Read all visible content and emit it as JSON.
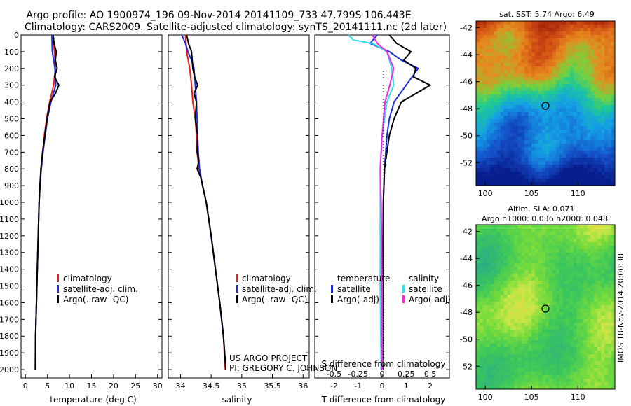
{
  "header": {
    "title_line1": "Argo profile: AO 1900974_196 09-Nov-2014 20141109_733 47.799S 106.443E",
    "title_line2": "Climatology: CARS2009. Satellite-adjusted climatology: synTS_20141111.nc (2d later)"
  },
  "colors": {
    "red": "#e8201a",
    "blue": "#1c2ed8",
    "black": "#000000",
    "cyan": "#2ee0ea",
    "magenta": "#ee28e6"
  },
  "depth_ticks": [
    "0",
    "100",
    "200",
    "300",
    "400",
    "500",
    "600",
    "700",
    "800",
    "900",
    "1000",
    "1100",
    "1200",
    "1300",
    "1400",
    "1500",
    "1600",
    "1700",
    "1800",
    "1900",
    "2000"
  ],
  "legend": {
    "clim": "climatology",
    "sat": "satellite-adj. clim.",
    "argo": "Argo(..raw -QC)",
    "temperature_head": "temperature",
    "salinity_head": "salinity",
    "satellite": "satellite",
    "argo_adj": "Argo(-adj)"
  },
  "credits": {
    "line1": "US ARGO PROJECT",
    "line2": "PI: GREGORY C. JOHNSON"
  },
  "maps": {
    "sst_title": "sat. SST: 5.74 Argo: 6.49",
    "sla_title1": "Altim. SLA: 0.071",
    "sla_title2": "Argo h1000: 0.036 h2000: 0.048",
    "yticks": [
      "-42",
      "-44",
      "-46",
      "-48",
      "-50",
      "-52"
    ],
    "xticks": [
      "100",
      "105",
      "110"
    ],
    "side_label": "IMOS 18-Nov-2014 20:00:38",
    "float_position": {
      "lon": 106.443,
      "lat": -47.799
    }
  },
  "chart_data": [
    {
      "type": "line",
      "xlabel": "temperature (deg C)",
      "ylabel": "",
      "xlim": [
        -1,
        31
      ],
      "ylim": [
        2050,
        0
      ],
      "xticks": [
        "0",
        "5",
        "10",
        "15",
        "20",
        "25",
        "30"
      ],
      "series": [
        {
          "name": "climatology",
          "color": "red",
          "points": [
            [
              6.2,
              0
            ],
            [
              6.6,
              100
            ],
            [
              6.8,
              200
            ],
            [
              6.4,
              300
            ],
            [
              5.5,
              400
            ],
            [
              4.8,
              500
            ],
            [
              4.3,
              600
            ],
            [
              3.9,
              700
            ],
            [
              3.6,
              800
            ],
            [
              3.3,
              900
            ],
            [
              3.1,
              1000
            ],
            [
              2.9,
              1200
            ],
            [
              2.7,
              1400
            ],
            [
              2.5,
              1600
            ],
            [
              2.3,
              1800
            ],
            [
              2.2,
              2000
            ]
          ]
        },
        {
          "name": "satellite-adj. clim.",
          "color": "blue",
          "points": [
            [
              6.0,
              0
            ],
            [
              6.1,
              100
            ],
            [
              6.7,
              200
            ],
            [
              6.9,
              300
            ],
            [
              5.8,
              400
            ],
            [
              5.0,
              500
            ],
            [
              4.5,
              600
            ],
            [
              4.0,
              700
            ],
            [
              3.6,
              800
            ],
            [
              3.3,
              900
            ],
            [
              3.1,
              1000
            ],
            [
              2.9,
              1200
            ],
            [
              2.7,
              1400
            ],
            [
              2.5,
              1600
            ],
            [
              2.3,
              1800
            ],
            [
              2.3,
              2000
            ]
          ]
        },
        {
          "name": "Argo(..raw -QC)",
          "color": "black",
          "points": [
            [
              6.3,
              0
            ],
            [
              6.5,
              50
            ],
            [
              7.0,
              100
            ],
            [
              6.8,
              150
            ],
            [
              7.2,
              200
            ],
            [
              6.6,
              250
            ],
            [
              7.6,
              300
            ],
            [
              6.8,
              350
            ],
            [
              5.6,
              400
            ],
            [
              4.9,
              500
            ],
            [
              4.4,
              600
            ],
            [
              3.9,
              700
            ],
            [
              3.5,
              800
            ],
            [
              3.3,
              900
            ],
            [
              3.1,
              1000
            ],
            [
              2.9,
              1200
            ],
            [
              2.7,
              1400
            ],
            [
              2.5,
              1600
            ],
            [
              2.3,
              1800
            ],
            [
              2.3,
              2000
            ]
          ]
        }
      ],
      "legend_position": "lower-right"
    },
    {
      "type": "line",
      "xlabel": "salinity",
      "ylabel": "",
      "xlim": [
        33.8,
        36.1
      ],
      "ylim": [
        2050,
        0
      ],
      "xticks": [
        "34",
        "34.5",
        "35",
        "35.5",
        "36"
      ],
      "series": [
        {
          "name": "climatology",
          "color": "red",
          "points": [
            [
              34.08,
              0
            ],
            [
              34.1,
              100
            ],
            [
              34.15,
              200
            ],
            [
              34.18,
              300
            ],
            [
              34.2,
              400
            ],
            [
              34.24,
              500
            ],
            [
              34.26,
              600
            ],
            [
              34.27,
              700
            ],
            [
              34.3,
              800
            ],
            [
              34.36,
              900
            ],
            [
              34.42,
              1000
            ],
            [
              34.5,
              1200
            ],
            [
              34.57,
              1400
            ],
            [
              34.64,
              1600
            ],
            [
              34.7,
              1800
            ],
            [
              34.73,
              2000
            ]
          ]
        },
        {
          "name": "satellite-adj. clim.",
          "color": "blue",
          "points": [
            [
              34.02,
              0
            ],
            [
              34.08,
              50
            ],
            [
              34.12,
              100
            ],
            [
              34.18,
              150
            ],
            [
              34.22,
              200
            ],
            [
              34.24,
              300
            ],
            [
              34.26,
              400
            ],
            [
              34.27,
              500
            ],
            [
              34.28,
              600
            ],
            [
              34.29,
              700
            ],
            [
              34.31,
              800
            ],
            [
              34.36,
              900
            ],
            [
              34.42,
              1000
            ],
            [
              34.5,
              1200
            ],
            [
              34.57,
              1400
            ],
            [
              34.64,
              1600
            ],
            [
              34.7,
              1800
            ],
            [
              34.74,
              2000
            ]
          ]
        },
        {
          "name": "Argo(..raw -QC)",
          "color": "black",
          "points": [
            [
              34.1,
              0
            ],
            [
              34.13,
              50
            ],
            [
              34.18,
              100
            ],
            [
              34.2,
              200
            ],
            [
              34.23,
              250
            ],
            [
              34.28,
              300
            ],
            [
              34.22,
              350
            ],
            [
              34.26,
              400
            ],
            [
              34.24,
              500
            ],
            [
              34.28,
              600
            ],
            [
              34.27,
              700
            ],
            [
              34.3,
              750
            ],
            [
              34.27,
              800
            ],
            [
              34.33,
              850
            ],
            [
              34.36,
              900
            ],
            [
              34.42,
              1000
            ],
            [
              34.5,
              1200
            ],
            [
              34.57,
              1400
            ],
            [
              34.64,
              1600
            ],
            [
              34.7,
              1800
            ],
            [
              34.74,
              2000
            ]
          ]
        }
      ],
      "legend_position": "lower-right"
    },
    {
      "type": "line",
      "xlabel": "T difference from climatology",
      "ylabel": "",
      "xlim": [
        -2.8,
        2.8
      ],
      "ylim": [
        2050,
        0
      ],
      "xticks": [
        "-2",
        "-1",
        "0",
        "1",
        "2"
      ],
      "secondary_axis": {
        "label": "S difference from climatology",
        "ticks": [
          "-0.5",
          "-0.25",
          "0",
          "0.25",
          "0.5"
        ],
        "lim": [
          -0.7,
          0.7
        ]
      },
      "series": [
        {
          "name": "temperature satellite",
          "color": "blue",
          "points": [
            [
              -0.2,
              0
            ],
            [
              -0.5,
              50
            ],
            [
              0.3,
              100
            ],
            [
              0.8,
              150
            ],
            [
              1.5,
              200
            ],
            [
              1.0,
              300
            ],
            [
              0.5,
              400
            ],
            [
              0.3,
              500
            ],
            [
              0.2,
              600
            ],
            [
              0.1,
              800
            ],
            [
              0.05,
              1000
            ],
            [
              0.02,
              1500
            ],
            [
              0.0,
              2000
            ]
          ]
        },
        {
          "name": "temperature Argo(-adj)",
          "color": "black",
          "points": [
            [
              0.3,
              0
            ],
            [
              0.6,
              50
            ],
            [
              1.2,
              100
            ],
            [
              0.9,
              150
            ],
            [
              1.4,
              200
            ],
            [
              1.3,
              250
            ],
            [
              2.0,
              300
            ],
            [
              1.4,
              350
            ],
            [
              0.8,
              400
            ],
            [
              0.5,
              500
            ],
            [
              0.3,
              600
            ],
            [
              0.1,
              800
            ],
            [
              0.05,
              1000
            ],
            [
              0.03,
              1500
            ],
            [
              0.02,
              2000
            ]
          ]
        },
        {
          "name": "salinity satellite",
          "color": "cyan",
          "points": [
            [
              -0.35,
              0
            ],
            [
              -0.3,
              30
            ],
            [
              -0.1,
              50
            ],
            [
              0.05,
              100
            ],
            [
              0.1,
              200
            ],
            [
              0.12,
              300
            ],
            [
              0.05,
              400
            ],
            [
              0.0,
              600
            ],
            [
              -0.02,
              800
            ],
            [
              -0.02,
              1000
            ],
            [
              -0.02,
              1500
            ],
            [
              -0.01,
              2000
            ]
          ]
        },
        {
          "name": "salinity Argo(-adj)",
          "color": "magenta",
          "points": [
            [
              -0.1,
              0
            ],
            [
              -0.05,
              50
            ],
            [
              0.05,
              100
            ],
            [
              0.12,
              200
            ],
            [
              0.08,
              300
            ],
            [
              0.03,
              400
            ],
            [
              0.0,
              600
            ],
            [
              -0.02,
              800
            ],
            [
              -0.01,
              1000
            ],
            [
              0.0,
              1500
            ],
            [
              0.0,
              2000
            ]
          ]
        }
      ],
      "legend_position": "lower-center"
    }
  ]
}
